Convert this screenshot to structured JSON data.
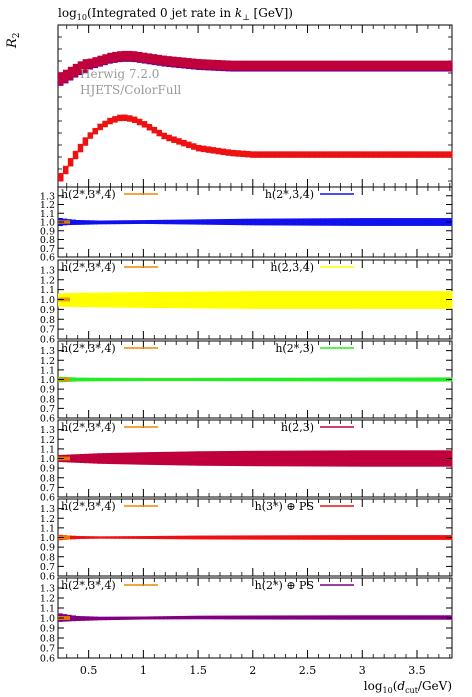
{
  "chart_data": {
    "type": "line",
    "title": "log10(Integrated 0 jet rate in k⊥ [GeV])",
    "title_parts": {
      "a": "log",
      "b": "10",
      "c": "(Integrated 0 jet rate in ",
      "d": "k",
      "e": "⊥",
      "f": " [GeV])"
    },
    "ylabel": "R",
    "ylabel_sub": "2",
    "xlabel_parts": {
      "a": "log",
      "b": "10",
      "c": "(",
      "d": "d",
      "e": "cut",
      "f": "/GeV)"
    },
    "xlim": [
      0.22,
      3.82
    ],
    "x_ticks": [
      "0.5",
      "1",
      "1.5",
      "2",
      "2.5",
      "3",
      "3.5"
    ],
    "x_tick_values": [
      0.5,
      1,
      1.5,
      2,
      2.5,
      3,
      3.5
    ],
    "annotations": [
      "Herwig 7.2.0",
      "HJETS/ColorFull"
    ],
    "main_panel": {
      "series": [
        {
          "label": "h(3*) ⊕ PS",
          "color": "#ee1111",
          "x": [
            0.25,
            0.3,
            0.4,
            0.5,
            0.6,
            0.7,
            0.8,
            0.9,
            1.0,
            1.2,
            1.5,
            1.8,
            2.0,
            2.5,
            3.0,
            3.5,
            3.8
          ],
          "y": [
            0.06,
            0.12,
            0.22,
            0.31,
            0.37,
            0.41,
            0.43,
            0.42,
            0.39,
            0.31,
            0.24,
            0.21,
            0.2,
            0.2,
            0.2,
            0.2,
            0.2
          ],
          "band": 0.04
        },
        {
          "label": "h(2*) ⊕ PS",
          "color": "#800080",
          "x": [
            0.25,
            0.3,
            0.4,
            0.5,
            0.6,
            0.7,
            0.8,
            0.9,
            1.0,
            1.2,
            1.5,
            1.8,
            2.0,
            2.5,
            3.0,
            3.5,
            3.8
          ],
          "y": [
            0.66,
            0.68,
            0.72,
            0.75,
            0.77,
            0.79,
            0.8,
            0.8,
            0.79,
            0.77,
            0.75,
            0.74,
            0.74,
            0.74,
            0.74,
            0.74,
            0.74
          ],
          "band": 0.055
        },
        {
          "label": "h(2,3)",
          "color": "#c0003c",
          "x": [
            0.25,
            0.3,
            0.4,
            0.5,
            0.6,
            0.7,
            0.8,
            0.9,
            1.0,
            1.2,
            1.5,
            1.8,
            2.0,
            2.5,
            3.0,
            3.5,
            3.8
          ],
          "y": [
            0.67,
            0.69,
            0.73,
            0.76,
            0.78,
            0.8,
            0.81,
            0.81,
            0.8,
            0.78,
            0.76,
            0.75,
            0.75,
            0.75,
            0.75,
            0.75,
            0.75
          ],
          "band": 0.06
        }
      ]
    },
    "ratio_panels": [
      {
        "ref_label": "h(2*,3*,4)",
        "ref_color": "#ee8800",
        "label": "h(2*,3,4)",
        "color": "#1111ee",
        "ylim": [
          0.6,
          1.4
        ],
        "y_ticks": [
          "0.6",
          "0.7",
          "0.8",
          "0.9",
          "1.0",
          "1.1",
          "1.2",
          "1.3"
        ],
        "x": [
          0.22,
          0.3,
          0.4,
          0.6,
          1.0,
          1.5,
          2.0,
          3.0,
          3.82
        ],
        "center": [
          1.0,
          1.0,
          0.995,
          0.995,
          1.0,
          1.0,
          1.0,
          1.0,
          1.0
        ],
        "halfwidth": [
          0.05,
          0.035,
          0.028,
          0.022,
          0.022,
          0.03,
          0.038,
          0.045,
          0.045
        ]
      },
      {
        "ref_label": "h(2*,3*,4)",
        "ref_color": "#ee8800",
        "label": "h(2,3,4)",
        "color": "#ffff00",
        "ylim": [
          0.6,
          1.4
        ],
        "y_ticks": [
          "0.6",
          "0.7",
          "0.8",
          "0.9",
          "1.0",
          "1.1",
          "1.2",
          "1.3"
        ],
        "x": [
          0.22,
          0.3,
          0.4,
          0.6,
          1.0,
          1.5,
          2.0,
          3.0,
          3.82
        ],
        "center": [
          0.995,
          0.995,
          0.995,
          0.995,
          0.995,
          0.995,
          0.995,
          0.995,
          0.995
        ],
        "halfwidth": [
          0.065,
          0.07,
          0.072,
          0.075,
          0.08,
          0.085,
          0.09,
          0.09,
          0.09
        ]
      },
      {
        "ref_label": "h(2*,3*,4)",
        "ref_color": "#ee8800",
        "label": "h(2*,3)",
        "color": "#22ee22",
        "ylim": [
          0.6,
          1.4
        ],
        "y_ticks": [
          "0.6",
          "0.7",
          "0.8",
          "0.9",
          "1.0",
          "1.1",
          "1.2",
          "1.3"
        ],
        "x": [
          0.22,
          0.3,
          0.4,
          0.6,
          1.0,
          1.5,
          2.0,
          3.0,
          3.82
        ],
        "center": [
          1.0,
          1.0,
          1.0,
          1.0,
          1.0,
          1.0,
          1.0,
          1.0,
          1.0
        ],
        "halfwidth": [
          0.03,
          0.025,
          0.02,
          0.018,
          0.016,
          0.016,
          0.018,
          0.02,
          0.022
        ]
      },
      {
        "ref_label": "h(2*,3*,4)",
        "ref_color": "#ee8800",
        "label": "h(2,3)",
        "color": "#c0003c",
        "ylim": [
          0.6,
          1.4
        ],
        "y_ticks": [
          "0.6",
          "0.7",
          "0.8",
          "0.9",
          "1.0",
          "1.1",
          "1.2",
          "1.3"
        ],
        "x": [
          0.22,
          0.3,
          0.4,
          0.6,
          1.0,
          1.5,
          2.0,
          3.0,
          3.82
        ],
        "center": [
          1.0,
          1.0,
          1.0,
          1.0,
          1.0,
          1.0,
          1.0,
          1.0,
          1.0
        ],
        "halfwidth": [
          0.035,
          0.04,
          0.045,
          0.055,
          0.065,
          0.075,
          0.08,
          0.085,
          0.085
        ]
      },
      {
        "ref_label": "h(2*,3*,4)",
        "ref_color": "#ee8800",
        "label": "h(3*) ⊕ PS",
        "color": "#ee1111",
        "ylim": [
          0.6,
          1.4
        ],
        "y_ticks": [
          "0.6",
          "0.7",
          "0.8",
          "0.9",
          "1.0",
          "1.1",
          "1.2",
          "1.3"
        ],
        "x": [
          0.22,
          0.3,
          0.4,
          0.6,
          1.0,
          1.5,
          2.0,
          3.0,
          3.82
        ],
        "center": [
          1.0,
          1.0,
          1.0,
          1.0,
          1.0,
          1.0,
          1.0,
          1.0,
          1.0
        ],
        "halfwidth": [
          0.03,
          0.022,
          0.016,
          0.012,
          0.015,
          0.02,
          0.022,
          0.025,
          0.025
        ]
      },
      {
        "ref_label": "h(2*,3*,4)",
        "ref_color": "#ee8800",
        "label": "h(2*) ⊕ PS",
        "color": "#800080",
        "ylim": [
          0.6,
          1.4
        ],
        "y_ticks": [
          "0.6",
          "0.7",
          "0.8",
          "0.9",
          "1.0",
          "1.1",
          "1.2",
          "1.3"
        ],
        "x": [
          0.22,
          0.3,
          0.4,
          0.6,
          1.0,
          1.5,
          2.0,
          3.0,
          3.82
        ],
        "center": [
          1.005,
          1.0,
          0.995,
          0.995,
          1.0,
          1.005,
          1.005,
          1.005,
          1.005
        ],
        "halfwidth": [
          0.045,
          0.035,
          0.025,
          0.018,
          0.015,
          0.018,
          0.02,
          0.022,
          0.022
        ]
      }
    ]
  }
}
